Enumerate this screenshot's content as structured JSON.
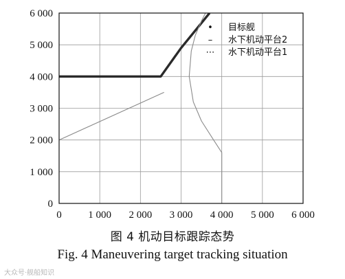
{
  "chart_data": {
    "type": "line",
    "x_ticks": [
      0,
      1000,
      2000,
      3000,
      4000,
      5000,
      6000
    ],
    "y_ticks": [
      0,
      1000,
      2000,
      3000,
      4000,
      5000,
      6000
    ],
    "x_tick_labels": [
      "0",
      "1 000",
      "2 000",
      "3 000",
      "4 000",
      "5 000",
      "6 000"
    ],
    "y_tick_labels": [
      "0",
      "1 000",
      "2 000",
      "3 000",
      "4 000",
      "5 000",
      "6 000"
    ],
    "xlim": [
      0,
      6000
    ],
    "ylim": [
      0,
      6000
    ],
    "grid": true,
    "legend_position": "top-right",
    "series": [
      {
        "name": "目标舰",
        "style": "thick-solid",
        "color": "#2a2a2a",
        "x": [
          0,
          2500,
          3000,
          3700
        ],
        "y": [
          4000,
          4000,
          4900,
          6000
        ]
      },
      {
        "name": "水下机动平台2",
        "style": "thin-solid",
        "color": "#8a8a8a",
        "x": [
          0,
          2580
        ],
        "y": [
          2000,
          3500
        ]
      },
      {
        "name": "水下机动平台1",
        "style": "thin-solid",
        "color": "#8a8a8a",
        "x": [
          4000,
          4000,
          3800,
          3500,
          3300,
          3200,
          3250,
          3350,
          3500,
          3600
        ],
        "y": [
          0,
          1600,
          2000,
          2600,
          3200,
          4000,
          4800,
          5300,
          5750,
          6000
        ]
      }
    ]
  },
  "legend": {
    "items": [
      {
        "marker": "•",
        "label": "目标舰"
      },
      {
        "marker": "–",
        "label": "水下机动平台2"
      },
      {
        "marker": "⋯",
        "label": "水下机动平台1"
      }
    ]
  },
  "caption": {
    "cn": "图 4  机动目标跟踪态势",
    "en": "Fig. 4    Maneuvering target tracking situation"
  },
  "watermark": "大众号·舰船知识"
}
